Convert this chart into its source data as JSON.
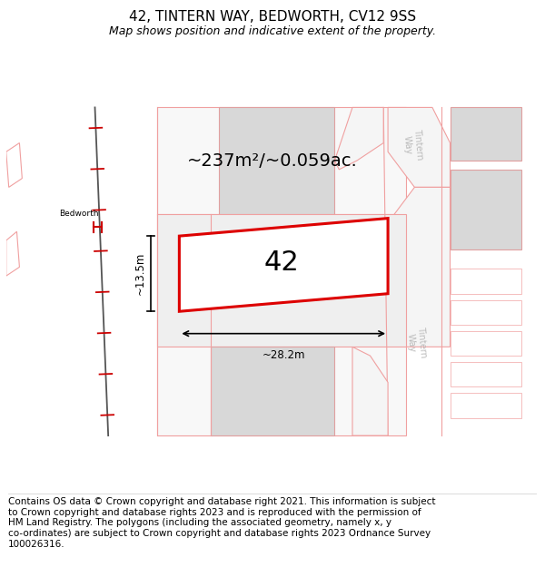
{
  "title": "42, TINTERN WAY, BEDWORTH, CV12 9SS",
  "subtitle": "Map shows position and indicative extent of the property.",
  "footer": "Contains OS data © Crown copyright and database right 2021. This information is subject\nto Crown copyright and database rights 2023 and is reproduced with the permission of\nHM Land Registry. The polygons (including the associated geometry, namely x, y\nco-ordinates) are subject to Crown copyright and database rights 2023 Ordnance Survey\n100026316.",
  "area_label": "~237m²/~0.059ac.",
  "width_label": "~28.2m",
  "height_label": "~13.5m",
  "plot_number": "42",
  "bg_color": "#ffffff",
  "map_bg": "#ffffff",
  "road_line_color": "#f0a0a0",
  "building_fill": "#d8d8d8",
  "building_edge": "#e0a0a0",
  "plot_fill": "#ffffff",
  "plot_edge": "#dd0000",
  "railway_color": "#555555",
  "railway_tick_color": "#cc0000",
  "dim_color": "#000000",
  "road_label_color": "#bbbbbb",
  "title_fontsize": 11,
  "subtitle_fontsize": 9,
  "footer_fontsize": 7.5,
  "area_fontsize": 14,
  "plot_num_fontsize": 22,
  "dim_fontsize": 8.5
}
